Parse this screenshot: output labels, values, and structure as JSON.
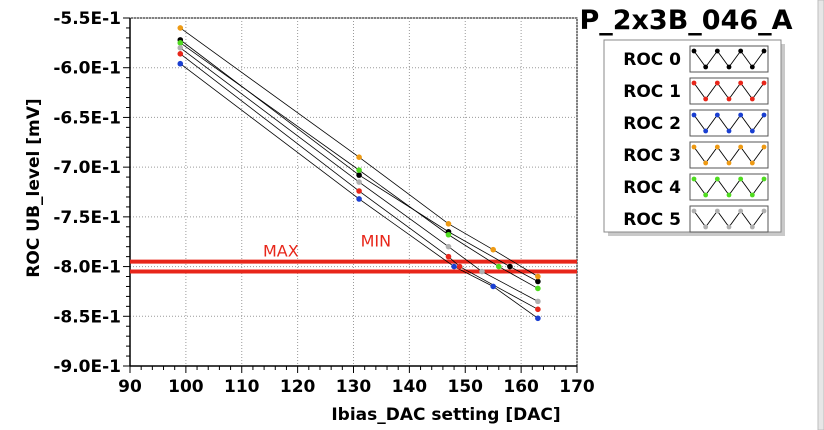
{
  "chart_data": {
    "type": "scatter",
    "title": "P_2x3B_046_A",
    "xlabel": "Ibias_DAC setting [DAC]",
    "ylabel": "ROC UB_level [mV]",
    "xlim": [
      90,
      170
    ],
    "ylim": [
      -0.9,
      -0.55
    ],
    "xticks": [
      90,
      100,
      110,
      120,
      130,
      140,
      150,
      160,
      170
    ],
    "xtick_labels": [
      "90",
      "100",
      "110",
      "120",
      "130",
      "140",
      "150",
      "160",
      "170"
    ],
    "yticks": [
      -0.55,
      -0.6,
      -0.65,
      -0.7,
      -0.75,
      -0.8,
      -0.85,
      -0.9
    ],
    "ytick_labels": [
      "-5.5E-1",
      "-6.0E-1",
      "-6.5E-1",
      "-7.0E-1",
      "-7.5E-1",
      "-8.0E-1",
      "-8.5E-1",
      "-9.0E-1"
    ],
    "grid": true,
    "legend_position": "top-right",
    "series": [
      {
        "name": "ROC 0",
        "color": "#000000",
        "points": [
          [
            99,
            -0.572
          ],
          [
            131,
            -0.708
          ],
          [
            147,
            -0.765
          ],
          [
            158,
            -0.8
          ],
          [
            163,
            -0.815
          ]
        ]
      },
      {
        "name": "ROC 1",
        "color": "#e8261a",
        "points": [
          [
            99,
            -0.586
          ],
          [
            131,
            -0.724
          ],
          [
            147,
            -0.79
          ],
          [
            149,
            -0.8
          ],
          [
            163,
            -0.843
          ]
        ]
      },
      {
        "name": "ROC 2",
        "color": "#1a3fd1",
        "points": [
          [
            99,
            -0.596
          ],
          [
            131,
            -0.732
          ],
          [
            148,
            -0.8
          ],
          [
            155,
            -0.82
          ],
          [
            163,
            -0.852
          ]
        ]
      },
      {
        "name": "ROC 3",
        "color": "#ee9a14",
        "points": [
          [
            99,
            -0.56
          ],
          [
            131,
            -0.69
          ],
          [
            147,
            -0.757
          ],
          [
            155,
            -0.783
          ],
          [
            163,
            -0.81
          ]
        ]
      },
      {
        "name": "ROC 4",
        "color": "#4fdc1f",
        "points": [
          [
            99,
            -0.575
          ],
          [
            131,
            -0.703
          ],
          [
            147,
            -0.768
          ],
          [
            156,
            -0.8
          ],
          [
            163,
            -0.822
          ]
        ]
      },
      {
        "name": "ROC 5",
        "color": "#b0b0b0",
        "points": [
          [
            99,
            -0.58
          ],
          [
            131,
            -0.715
          ],
          [
            147,
            -0.78
          ],
          [
            153,
            -0.805
          ],
          [
            163,
            -0.835
          ]
        ]
      }
    ],
    "hlines": [
      {
        "y": -0.795,
        "color": "#e8261a"
      },
      {
        "y": -0.805,
        "color": "#e8261a"
      }
    ],
    "annotations": [
      {
        "text": "MAX",
        "x": 117,
        "y": -0.79,
        "color": "#e8261a"
      },
      {
        "text": "MIN",
        "x": 134,
        "y": -0.78,
        "color": "#e8261a"
      }
    ]
  }
}
